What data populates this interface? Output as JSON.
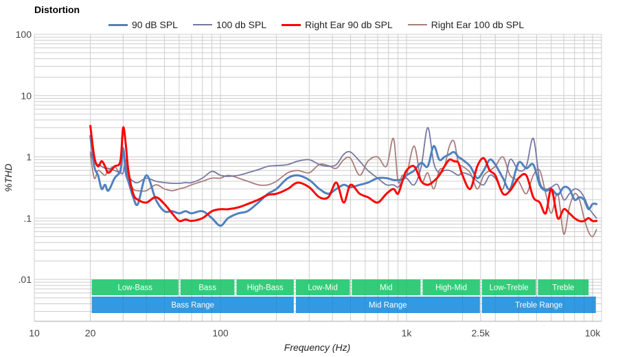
{
  "chart_data": {
    "type": "line",
    "title": "Distortion",
    "xlabel": "Frequency (Hz)",
    "ylabel": "%THD",
    "xscale": "log",
    "yscale": "log",
    "xlim": [
      10,
      10500
    ],
    "ylim": [
      0.0015,
      100
    ],
    "grid": true,
    "legend_position": "top",
    "x_ticks": [
      {
        "value": 10,
        "label": "10"
      },
      {
        "value": 20,
        "label": "20"
      },
      {
        "value": 100,
        "label": "100"
      },
      {
        "value": 1000,
        "label": "1k"
      },
      {
        "value": 2500,
        "label": "2.5k"
      },
      {
        "value": 10000,
        "label": "10k"
      }
    ],
    "y_ticks": [
      {
        "value": 100,
        "label": "100"
      },
      {
        "value": 10,
        "label": "10"
      },
      {
        "value": 1,
        "label": "1"
      },
      {
        "value": 0.1,
        "label": ".1"
      },
      {
        "value": 0.01,
        "label": ".01"
      }
    ],
    "x": [
      20,
      21,
      22,
      23,
      24,
      25,
      27,
      29,
      30,
      31,
      32,
      34,
      36,
      40,
      45,
      50,
      55,
      60,
      65,
      70,
      80,
      90,
      100,
      110,
      125,
      140,
      160,
      180,
      200,
      230,
      260,
      300,
      340,
      380,
      420,
      460,
      500,
      560,
      620,
      700,
      780,
      850,
      900,
      950,
      1000,
      1100,
      1200,
      1300,
      1400,
      1500,
      1600,
      1700,
      1800,
      1900,
      2000,
      2200,
      2400,
      2600,
      2800,
      3000,
      3300,
      3600,
      4000,
      4400,
      4800,
      5200,
      5600,
      6000,
      6500,
      7000,
      7500,
      8000,
      8500,
      9000,
      9500,
      10000,
      10500
    ],
    "series": [
      {
        "name": "90 dB SPL",
        "color": "#4f81bd",
        "width": 3,
        "values": [
          2.2,
          0.7,
          0.5,
          0.3,
          0.35,
          0.28,
          0.45,
          0.6,
          1.4,
          0.55,
          0.4,
          0.22,
          0.17,
          0.5,
          0.2,
          0.13,
          0.13,
          0.12,
          0.13,
          0.12,
          0.13,
          0.1,
          0.075,
          0.1,
          0.12,
          0.13,
          0.18,
          0.25,
          0.3,
          0.45,
          0.5,
          0.42,
          0.3,
          0.25,
          0.3,
          0.35,
          0.32,
          0.35,
          0.38,
          0.45,
          0.45,
          0.42,
          0.42,
          0.43,
          0.5,
          0.6,
          0.8,
          0.7,
          1.5,
          0.9,
          1.0,
          1.1,
          1.2,
          1.0,
          0.9,
          0.7,
          0.45,
          0.6,
          0.9,
          0.75,
          0.45,
          0.3,
          0.8,
          0.65,
          0.75,
          0.35,
          0.28,
          0.3,
          0.24,
          0.32,
          0.3,
          0.2,
          0.22,
          0.2,
          0.14,
          0.17,
          0.17
        ]
      },
      {
        "name": "100 db SPL",
        "color": "#7575a3",
        "width": 1.8,
        "values": [
          1.2,
          0.8,
          0.75,
          0.7,
          0.65,
          0.65,
          0.6,
          0.55,
          0.55,
          0.9,
          0.5,
          0.4,
          0.38,
          0.45,
          0.4,
          0.38,
          0.37,
          0.37,
          0.38,
          0.38,
          0.45,
          0.58,
          0.5,
          0.48,
          0.5,
          0.55,
          0.62,
          0.7,
          0.72,
          0.75,
          0.85,
          0.9,
          0.75,
          0.7,
          0.75,
          1.1,
          1.2,
          0.85,
          0.6,
          0.45,
          0.35,
          0.35,
          0.32,
          0.4,
          0.45,
          0.35,
          0.7,
          3.0,
          0.8,
          0.55,
          0.6,
          0.6,
          0.55,
          0.5,
          0.55,
          0.5,
          0.4,
          0.35,
          0.5,
          0.45,
          0.3,
          0.9,
          0.6,
          0.7,
          2.0,
          0.4,
          0.3,
          0.32,
          0.35,
          0.2,
          0.25,
          0.3,
          0.28,
          0.22,
          0.15,
          0.12,
          0.1
        ]
      },
      {
        "name": "Right Ear 90 db SPL",
        "color": "#ff0000",
        "width": 3,
        "values": [
          3.2,
          1.0,
          0.7,
          0.85,
          0.7,
          0.55,
          0.7,
          0.85,
          3.0,
          1.6,
          0.6,
          0.25,
          0.2,
          0.18,
          0.22,
          0.17,
          0.12,
          0.09,
          0.095,
          0.09,
          0.1,
          0.13,
          0.14,
          0.14,
          0.15,
          0.17,
          0.2,
          0.24,
          0.25,
          0.3,
          0.38,
          0.32,
          0.22,
          0.22,
          0.38,
          0.18,
          0.35,
          0.25,
          0.22,
          0.18,
          0.25,
          0.3,
          0.25,
          0.4,
          0.6,
          0.7,
          0.4,
          0.35,
          0.4,
          0.5,
          0.7,
          0.9,
          0.85,
          0.8,
          0.5,
          0.3,
          0.7,
          0.95,
          0.6,
          0.5,
          0.25,
          0.28,
          0.45,
          0.5,
          0.22,
          0.18,
          0.12,
          0.3,
          0.1,
          0.14,
          0.12,
          0.1,
          0.09,
          0.09,
          0.1,
          0.09,
          0.09
        ]
      },
      {
        "name": "Right Ear 100 db SPL",
        "color": "#a87b78",
        "width": 1.8,
        "values": [
          1.1,
          0.45,
          0.6,
          0.55,
          0.5,
          0.6,
          0.7,
          0.55,
          1.1,
          0.7,
          0.45,
          0.3,
          0.28,
          0.28,
          0.35,
          0.3,
          0.28,
          0.3,
          0.32,
          0.35,
          0.4,
          0.45,
          0.45,
          0.5,
          0.45,
          0.4,
          0.35,
          0.35,
          0.4,
          0.55,
          0.6,
          0.55,
          0.75,
          0.72,
          0.65,
          0.9,
          0.95,
          0.5,
          0.85,
          1.0,
          0.7,
          2.0,
          0.4,
          0.5,
          0.5,
          1.5,
          0.4,
          0.55,
          0.3,
          0.6,
          0.7,
          1.5,
          1.8,
          0.8,
          0.7,
          0.55,
          0.3,
          0.5,
          0.6,
          0.7,
          1.0,
          0.5,
          0.4,
          0.25,
          0.5,
          0.6,
          0.25,
          0.12,
          0.25,
          0.055,
          0.15,
          0.25,
          0.2,
          0.1,
          0.06,
          0.05,
          0.065
        ]
      }
    ],
    "bands": [
      {
        "row": "top",
        "label": "Low-Bass",
        "from": 20,
        "to": 60,
        "color": "#33cc7a"
      },
      {
        "row": "top",
        "label": "Bass",
        "from": 60,
        "to": 120,
        "color": "#33cc7a"
      },
      {
        "row": "top",
        "label": "High-Bass",
        "from": 120,
        "to": 250,
        "color": "#33cc7a"
      },
      {
        "row": "top",
        "label": "Low-Mid",
        "from": 250,
        "to": 500,
        "color": "#33cc7a"
      },
      {
        "row": "top",
        "label": "Mid",
        "from": 500,
        "to": 1200,
        "color": "#33cc7a"
      },
      {
        "row": "top",
        "label": "High-Mid",
        "from": 1200,
        "to": 2500,
        "color": "#33cc7a"
      },
      {
        "row": "top",
        "label": "Low-Treble",
        "from": 2500,
        "to": 5000,
        "color": "#33cc7a"
      },
      {
        "row": "top",
        "label": "Treble",
        "from": 5000,
        "to": 9600,
        "color": "#33cc7a"
      },
      {
        "row": "bottom",
        "label": "Bass Range",
        "from": 20,
        "to": 250,
        "color": "#3399e0"
      },
      {
        "row": "bottom",
        "label": "Mid Range",
        "from": 250,
        "to": 2500,
        "color": "#3399e0"
      },
      {
        "row": "bottom",
        "label": "Treble Range",
        "from": 2500,
        "to": 10500,
        "color": "#3399e0"
      }
    ]
  }
}
